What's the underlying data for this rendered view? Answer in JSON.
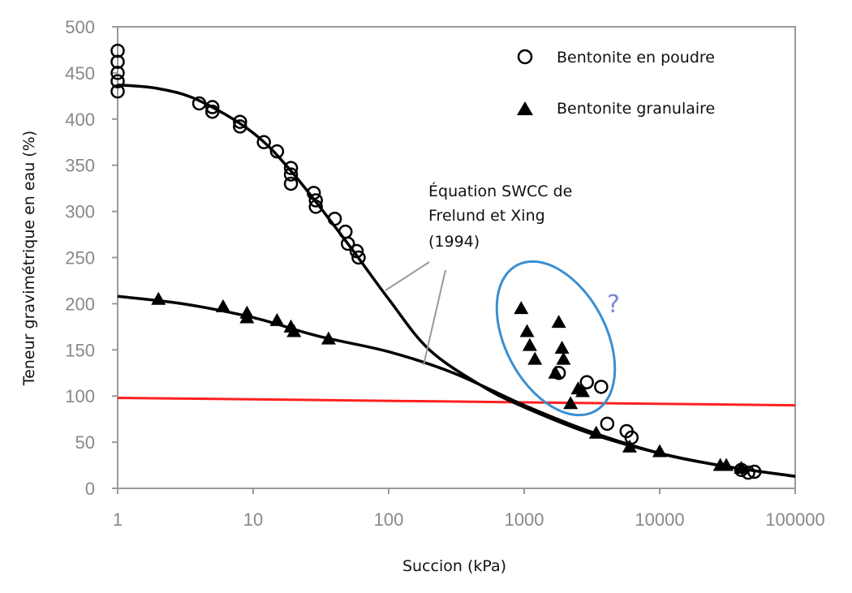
{
  "chart_data": {
    "type": "scatter",
    "xlabel": "Succion (kPa)",
    "ylabel": "Teneur gravimétrique en eau (%)",
    "xscale": "log",
    "xlim": [
      1,
      100000
    ],
    "ylim": [
      0,
      500
    ],
    "xticks": [
      1,
      10,
      100,
      1000,
      10000,
      100000
    ],
    "xtick_labels": [
      "1",
      "10",
      "100",
      "1000",
      "10000",
      "100000"
    ],
    "yticks": [
      0,
      50,
      100,
      150,
      200,
      250,
      300,
      350,
      400,
      450,
      500
    ],
    "ytick_labels": [
      "0",
      "50",
      "100",
      "150",
      "200",
      "250",
      "300",
      "350",
      "400",
      "450",
      "500"
    ],
    "grid": false,
    "legend_placement": "top-right",
    "series": [
      {
        "name": "Bentonite en poudre",
        "marker": "open-circle",
        "points": [
          [
            1,
            474
          ],
          [
            1,
            462
          ],
          [
            1,
            450
          ],
          [
            1,
            441
          ],
          [
            1,
            430
          ],
          [
            4,
            417
          ],
          [
            5,
            413
          ],
          [
            5,
            408
          ],
          [
            8,
            397
          ],
          [
            8,
            392
          ],
          [
            12,
            375
          ],
          [
            15,
            365
          ],
          [
            19,
            347
          ],
          [
            19,
            340
          ],
          [
            19,
            330
          ],
          [
            28,
            320
          ],
          [
            29,
            312
          ],
          [
            29,
            305
          ],
          [
            40,
            292
          ],
          [
            48,
            278
          ],
          [
            50,
            265
          ],
          [
            58,
            257
          ],
          [
            60,
            250
          ],
          [
            1800,
            125
          ],
          [
            2900,
            115
          ],
          [
            3700,
            110
          ],
          [
            4100,
            70
          ],
          [
            5700,
            62
          ],
          [
            6200,
            55
          ],
          [
            40000,
            20
          ],
          [
            45000,
            17
          ],
          [
            50000,
            18
          ]
        ]
      },
      {
        "name": "Bentonite granulaire",
        "marker": "filled-triangle",
        "points": [
          [
            2,
            205
          ],
          [
            6,
            197
          ],
          [
            9,
            190
          ],
          [
            9,
            185
          ],
          [
            15,
            182
          ],
          [
            19,
            175
          ],
          [
            20,
            170
          ],
          [
            36,
            162
          ],
          [
            950,
            195
          ],
          [
            1050,
            170
          ],
          [
            1100,
            155
          ],
          [
            1200,
            140
          ],
          [
            1800,
            180
          ],
          [
            1900,
            152
          ],
          [
            1950,
            140
          ],
          [
            1700,
            125
          ],
          [
            2500,
            108
          ],
          [
            2700,
            105
          ],
          [
            2200,
            92
          ],
          [
            3400,
            60
          ],
          [
            6000,
            45
          ],
          [
            10000,
            40
          ],
          [
            28000,
            25
          ],
          [
            31000,
            25
          ],
          [
            40000,
            22
          ]
        ]
      }
    ],
    "fit_curves": [
      {
        "points": [
          [
            1,
            437
          ],
          [
            2,
            433
          ],
          [
            4,
            420
          ],
          [
            10,
            385
          ],
          [
            20,
            340
          ],
          [
            50,
            265
          ],
          [
            100,
            205
          ],
          [
            200,
            150
          ],
          [
            500,
            110
          ],
          [
            1000,
            88
          ],
          [
            3000,
            60
          ],
          [
            10000,
            38
          ],
          [
            30000,
            24
          ],
          [
            100000,
            13
          ]
        ],
        "color": "#000000"
      },
      {
        "points": [
          [
            1,
            208
          ],
          [
            3,
            200
          ],
          [
            10,
            185
          ],
          [
            30,
            165
          ],
          [
            100,
            148
          ],
          [
            300,
            125
          ],
          [
            1000,
            90
          ],
          [
            3000,
            62
          ],
          [
            10000,
            38
          ],
          [
            30000,
            24
          ],
          [
            100000,
            13
          ]
        ],
        "color": "#000000"
      }
    ],
    "reference_line": {
      "points": [
        [
          1,
          98
        ],
        [
          100000,
          90
        ]
      ],
      "color": "#ff2020"
    },
    "annotations": {
      "fit_label": [
        "Équation SWCC de",
        "Frelund et Xing",
        "(1994)"
      ],
      "question_mark": "?",
      "ellipse_color": "#3a8fd0",
      "question_color": "#7b86d6"
    }
  }
}
